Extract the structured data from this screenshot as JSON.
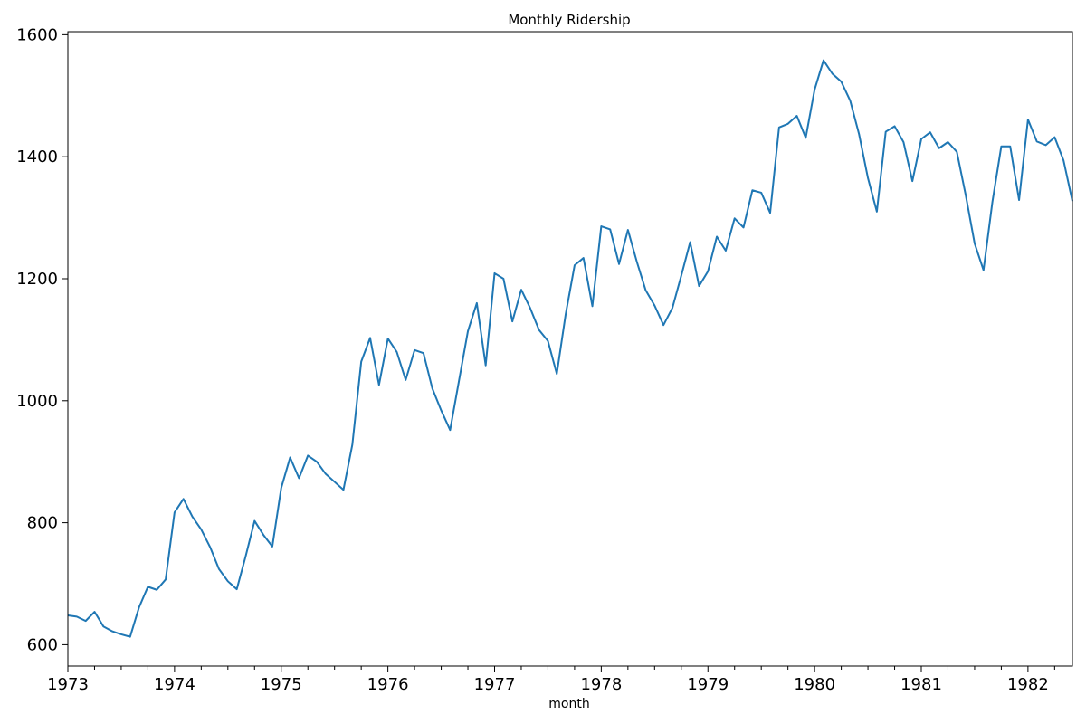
{
  "chart_data": {
    "type": "line",
    "title": "Monthly Ridership",
    "xlabel": "month",
    "ylabel": "",
    "xlim": [
      1973.0,
      1982.4167
    ],
    "ylim": [
      565,
      1605
    ],
    "grid": false,
    "x_ticks": [
      {
        "value": 1973,
        "label": "1973"
      },
      {
        "value": 1974,
        "label": "1974"
      },
      {
        "value": 1975,
        "label": "1975"
      },
      {
        "value": 1976,
        "label": "1976"
      },
      {
        "value": 1977,
        "label": "1977"
      },
      {
        "value": 1978,
        "label": "1978"
      },
      {
        "value": 1979,
        "label": "1979"
      },
      {
        "value": 1980,
        "label": "1980"
      },
      {
        "value": 1981,
        "label": "1981"
      },
      {
        "value": 1982,
        "label": "1982"
      }
    ],
    "y_ticks": [
      {
        "value": 600,
        "label": "600"
      },
      {
        "value": 800,
        "label": "800"
      },
      {
        "value": 1000,
        "label": "1000"
      },
      {
        "value": 1200,
        "label": "1200"
      },
      {
        "value": 1400,
        "label": "1400"
      },
      {
        "value": 1600,
        "label": "1600"
      }
    ],
    "start": "1973-01",
    "series": [
      {
        "name": "ridership",
        "color": "#1f77b4",
        "values": [
          648,
          646,
          639,
          654,
          630,
          622,
          617,
          613,
          661,
          695,
          690,
          707,
          817,
          839,
          810,
          789,
          760,
          724,
          704,
          691,
          745,
          803,
          780,
          761,
          857,
          907,
          873,
          910,
          900,
          880,
          867,
          854,
          928,
          1064,
          1103,
          1026,
          1102,
          1080,
          1034,
          1083,
          1078,
          1020,
          984,
          952,
          1033,
          1114,
          1160,
          1058,
          1209,
          1200,
          1130,
          1182,
          1152,
          1116,
          1098,
          1044,
          1142,
          1222,
          1234,
          1155,
          1286,
          1281,
          1224,
          1280,
          1228,
          1181,
          1156,
          1124,
          1152,
          1205,
          1260,
          1188,
          1212,
          1269,
          1246,
          1299,
          1284,
          1345,
          1341,
          1308,
          1448,
          1454,
          1467,
          1431,
          1510,
          1558,
          1536,
          1523,
          1492,
          1437,
          1365,
          1310,
          1441,
          1450,
          1424,
          1360,
          1429,
          1440,
          1414,
          1424,
          1408,
          1337,
          1258,
          1214,
          1326,
          1417,
          1417,
          1329,
          1461,
          1425,
          1419,
          1432,
          1394,
          1327
        ]
      }
    ]
  }
}
